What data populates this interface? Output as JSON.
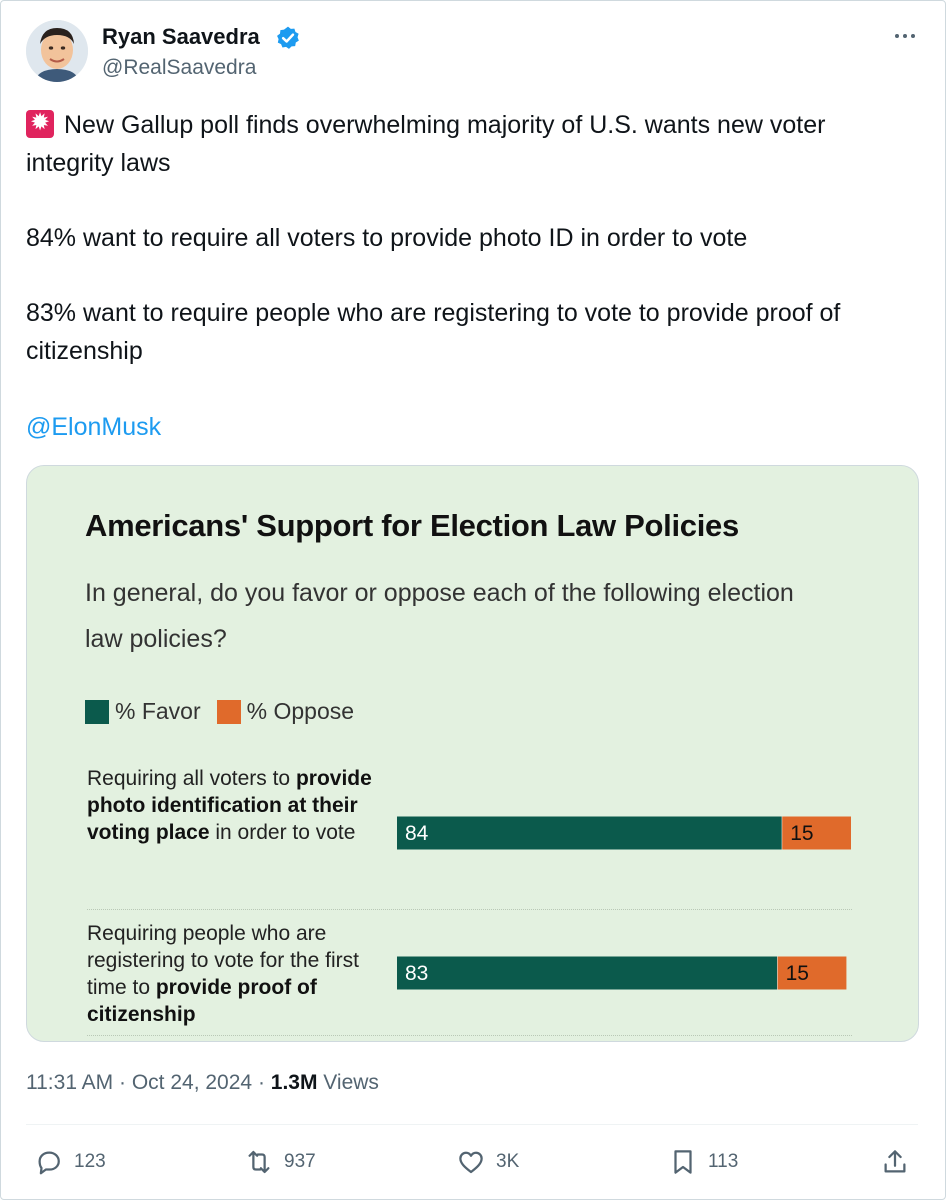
{
  "author": {
    "name": "Ryan Saavedra",
    "handle": "@RealSaavedra"
  },
  "tweet": {
    "line1": "New Gallup poll finds overwhelming majority of U.S. wants new voter integrity laws",
    "line2": "84% want to require all voters to provide photo ID in order to vote",
    "line3": "83% want to require people who are registering to vote to provide proof of citizenship",
    "mention": "@ElonMusk"
  },
  "chart_data": {
    "type": "bar",
    "stacked": true,
    "orientation": "horizontal",
    "title": "Americans' Support for Election Law Policies",
    "subtitle": "In general, do you favor or oppose each of the following election law policies?",
    "categories": [
      {
        "parts": [
          {
            "text": "Requiring all voters to ",
            "bold": false
          },
          {
            "text": "provide photo identification at their voting place",
            "bold": true
          },
          {
            "text": " in order to vote",
            "bold": false
          }
        ]
      },
      {
        "parts": [
          {
            "text": "Requiring people who are registering to vote for the first time to ",
            "bold": false
          },
          {
            "text": "provide proof of citizenship",
            "bold": true
          }
        ]
      }
    ],
    "series": [
      {
        "name": "% Favor",
        "color": "#0b5a4c",
        "values": [
          84,
          83
        ]
      },
      {
        "name": "% Oppose",
        "color": "#e06a2b",
        "values": [
          15,
          15
        ]
      }
    ],
    "xlim": [
      0,
      100
    ],
    "legend": "top-left"
  },
  "meta": {
    "time": "11:31 AM",
    "date": "Oct 24, 2024",
    "views_count": "1.3M",
    "views_label": "Views"
  },
  "actions": {
    "replies": "123",
    "reposts": "937",
    "likes": "3K",
    "bookmarks": "113"
  },
  "colors": {
    "link": "#1d9bf0",
    "verified": "#1d9bf0",
    "card_bg": "#e3f1e0"
  }
}
